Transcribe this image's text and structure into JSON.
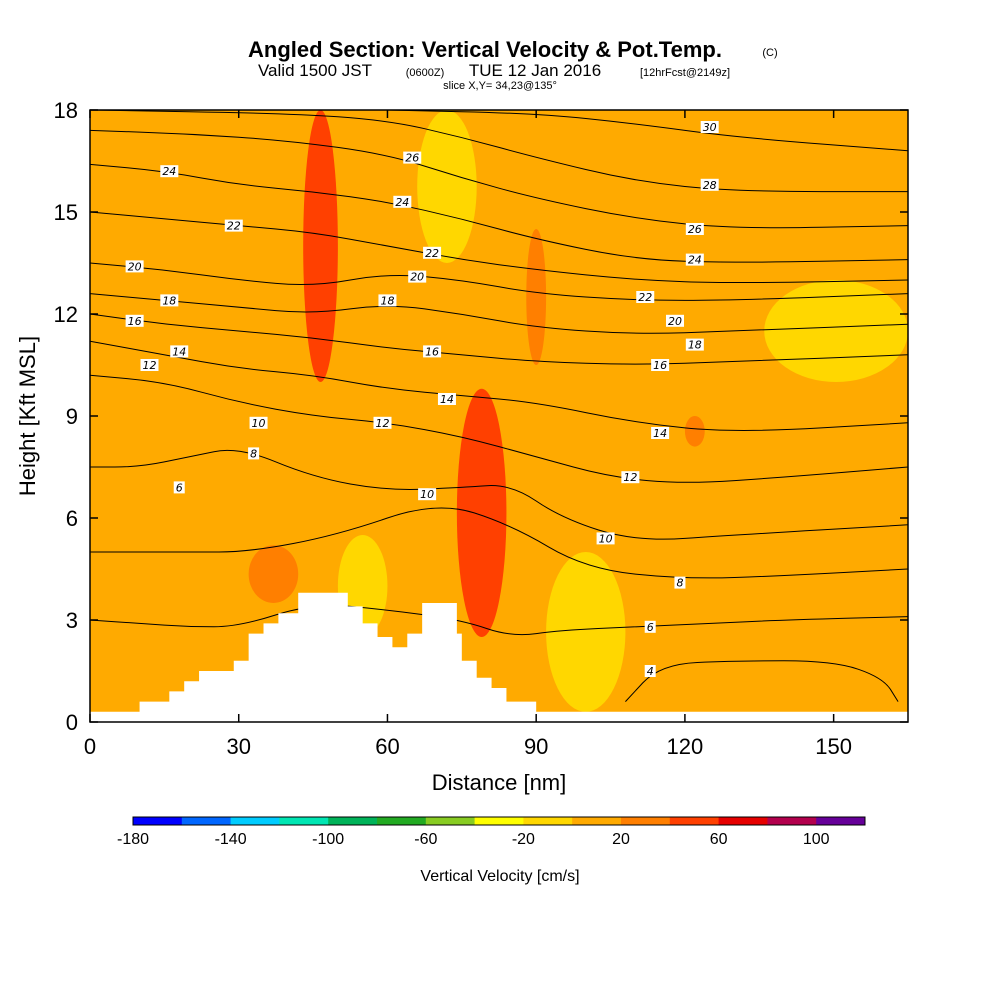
{
  "header": {
    "title": "Angled Section: Vertical Velocity & Pot.Temp.",
    "title_unit": "(C)",
    "valid_prefix": "Valid 1500 JST",
    "valid_utc": "(0600Z)",
    "valid_date": "TUE 12 Jan 2016",
    "forecast": "[12hrFcst@2149z]",
    "slice": "slice X,Y= 34,23@135°"
  },
  "colorbar": {
    "label": "Vertical Velocity [cm/s]",
    "bounds": [
      -180,
      -160,
      -140,
      -120,
      -100,
      -80,
      -60,
      -40,
      -20,
      0,
      20,
      40,
      60,
      80,
      100,
      120
    ],
    "colors": [
      "#0000ff",
      "#0066ff",
      "#00ccff",
      "#00e6b3",
      "#00b359",
      "#22aa22",
      "#88cc22",
      "#ffff00",
      "#ffd700",
      "#ffaa00",
      "#ff7f00",
      "#ff4000",
      "#e60000",
      "#b3004d",
      "#660099"
    ],
    "tick_labels": [
      "-180",
      "-140",
      "-100",
      "-60",
      "-20",
      "20",
      "60",
      "100"
    ]
  },
  "chart_data": {
    "type": "contour",
    "title": "Angled Section: Vertical Velocity & Pot.Temp.",
    "xlabel": "Distance [nm]",
    "ylabel": "Height [Kft MSL]",
    "xlim": [
      0,
      165
    ],
    "ylim": [
      0,
      18
    ],
    "x_ticks": [
      0,
      30,
      60,
      90,
      120,
      150
    ],
    "y_ticks": [
      0,
      3,
      6,
      9,
      12,
      15,
      18
    ],
    "terrain": [
      [
        0,
        0.3
      ],
      [
        10,
        0.3
      ],
      [
        10,
        0.6
      ],
      [
        16,
        0.6
      ],
      [
        16,
        0.9
      ],
      [
        19,
        0.9
      ],
      [
        19,
        1.2
      ],
      [
        22,
        1.2
      ],
      [
        22,
        1.5
      ],
      [
        29,
        1.5
      ],
      [
        29,
        1.8
      ],
      [
        32,
        1.8
      ],
      [
        32,
        2.6
      ],
      [
        35,
        2.6
      ],
      [
        35,
        2.9
      ],
      [
        38,
        2.9
      ],
      [
        38,
        3.2
      ],
      [
        42,
        3.2
      ],
      [
        42,
        3.8
      ],
      [
        52,
        3.8
      ],
      [
        52,
        3.4
      ],
      [
        55,
        3.4
      ],
      [
        55,
        2.9
      ],
      [
        58,
        2.9
      ],
      [
        58,
        2.5
      ],
      [
        61,
        2.5
      ],
      [
        61,
        2.2
      ],
      [
        64,
        2.2
      ],
      [
        64,
        2.6
      ],
      [
        67,
        2.6
      ],
      [
        67,
        3.5
      ],
      [
        74,
        3.5
      ],
      [
        74,
        2.6
      ],
      [
        75,
        2.6
      ],
      [
        75,
        1.8
      ],
      [
        78,
        1.8
      ],
      [
        78,
        1.3
      ],
      [
        81,
        1.3
      ],
      [
        81,
        1.0
      ],
      [
        84,
        1.0
      ],
      [
        84,
        0.6
      ],
      [
        90,
        0.6
      ],
      [
        90,
        0.3
      ],
      [
        165,
        0.3
      ]
    ],
    "potential_temperature_contours": [
      {
        "value": 4,
        "points": [
          [
            108,
            0.6
          ],
          [
            115,
            1.7
          ],
          [
            130,
            1.8
          ],
          [
            150,
            1.8
          ],
          [
            160,
            1.3
          ],
          [
            163,
            0.6
          ]
        ]
      },
      {
        "value": 6,
        "points": [
          [
            0,
            3.0
          ],
          [
            10,
            2.9
          ],
          [
            20,
            2.8
          ],
          [
            30,
            2.8
          ],
          [
            45,
            3.5
          ],
          [
            60,
            3.3
          ],
          [
            75,
            3.0
          ],
          [
            85,
            2.5
          ],
          [
            95,
            2.7
          ],
          [
            110,
            2.8
          ],
          [
            125,
            2.9
          ],
          [
            140,
            3.0
          ],
          [
            165,
            3.1
          ]
        ]
      },
      {
        "value": 8,
        "points": [
          [
            0,
            5.0
          ],
          [
            10,
            5.0
          ],
          [
            20,
            5.0
          ],
          [
            32,
            5.0
          ],
          [
            50,
            5.5
          ],
          [
            70,
            6.5
          ],
          [
            85,
            5.8
          ],
          [
            100,
            4.5
          ],
          [
            120,
            4.2
          ],
          [
            140,
            4.3
          ],
          [
            165,
            4.5
          ]
        ]
      },
      {
        "value": 10,
        "points": [
          [
            0,
            7.5
          ],
          [
            10,
            7.5
          ],
          [
            20,
            7.8
          ],
          [
            30,
            8.1
          ],
          [
            45,
            7.2
          ],
          [
            60,
            6.8
          ],
          [
            75,
            6.9
          ],
          [
            85,
            7.0
          ],
          [
            95,
            6.0
          ],
          [
            110,
            5.3
          ],
          [
            130,
            5.5
          ],
          [
            165,
            5.8
          ]
        ]
      },
      {
        "value": 12,
        "points": [
          [
            0,
            10.2
          ],
          [
            15,
            10.0
          ],
          [
            30,
            9.4
          ],
          [
            45,
            9.0
          ],
          [
            60,
            8.8
          ],
          [
            75,
            8.4
          ],
          [
            90,
            7.8
          ],
          [
            105,
            7.2
          ],
          [
            120,
            7.0
          ],
          [
            140,
            7.2
          ],
          [
            165,
            7.5
          ]
        ]
      },
      {
        "value": 14,
        "points": [
          [
            0,
            11.2
          ],
          [
            15,
            10.8
          ],
          [
            30,
            10.4
          ],
          [
            45,
            10.2
          ],
          [
            60,
            9.8
          ],
          [
            75,
            9.6
          ],
          [
            90,
            9.4
          ],
          [
            110,
            8.8
          ],
          [
            130,
            8.5
          ],
          [
            165,
            8.8
          ]
        ]
      },
      {
        "value": 16,
        "points": [
          [
            0,
            12.0
          ],
          [
            15,
            11.7
          ],
          [
            30,
            11.5
          ],
          [
            45,
            11.3
          ],
          [
            60,
            11.0
          ],
          [
            75,
            10.8
          ],
          [
            90,
            10.6
          ],
          [
            110,
            10.5
          ],
          [
            130,
            10.6
          ],
          [
            165,
            10.8
          ]
        ]
      },
      {
        "value": 18,
        "points": [
          [
            0,
            12.6
          ],
          [
            15,
            12.4
          ],
          [
            30,
            12.2
          ],
          [
            45,
            12.0
          ],
          [
            60,
            12.3
          ],
          [
            75,
            12.0
          ],
          [
            90,
            11.6
          ],
          [
            110,
            11.4
          ],
          [
            130,
            11.5
          ],
          [
            165,
            11.7
          ]
        ]
      },
      {
        "value": 20,
        "points": [
          [
            0,
            13.5
          ],
          [
            15,
            13.3
          ],
          [
            30,
            13.0
          ],
          [
            45,
            12.8
          ],
          [
            60,
            13.2
          ],
          [
            75,
            13.0
          ],
          [
            90,
            12.6
          ],
          [
            110,
            12.4
          ],
          [
            130,
            12.4
          ],
          [
            165,
            12.6
          ]
        ]
      },
      {
        "value": 22,
        "points": [
          [
            0,
            15.0
          ],
          [
            15,
            14.8
          ],
          [
            30,
            14.6
          ],
          [
            45,
            14.4
          ],
          [
            60,
            14.0
          ],
          [
            75,
            13.6
          ],
          [
            90,
            13.3
          ],
          [
            110,
            13.0
          ],
          [
            130,
            12.9
          ],
          [
            165,
            13.0
          ]
        ]
      },
      {
        "value": 24,
        "points": [
          [
            0,
            16.4
          ],
          [
            15,
            16.2
          ],
          [
            30,
            15.8
          ],
          [
            45,
            15.6
          ],
          [
            60,
            15.3
          ],
          [
            75,
            14.8
          ],
          [
            90,
            14.2
          ],
          [
            110,
            13.6
          ],
          [
            130,
            13.5
          ],
          [
            165,
            13.6
          ]
        ]
      },
      {
        "value": 26,
        "points": [
          [
            0,
            17.4
          ],
          [
            20,
            17.3
          ],
          [
            40,
            17.1
          ],
          [
            60,
            16.7
          ],
          [
            75,
            16.0
          ],
          [
            90,
            15.4
          ],
          [
            110,
            14.8
          ],
          [
            130,
            14.5
          ],
          [
            165,
            14.6
          ]
        ]
      },
      {
        "value": 28,
        "points": [
          [
            0,
            18.0
          ],
          [
            40,
            17.9
          ],
          [
            60,
            17.7
          ],
          [
            75,
            17.2
          ],
          [
            90,
            16.6
          ],
          [
            110,
            15.9
          ],
          [
            130,
            15.6
          ],
          [
            165,
            15.6
          ]
        ]
      },
      {
        "value": 30,
        "points": [
          [
            60,
            18.0
          ],
          [
            90,
            17.9
          ],
          [
            110,
            17.6
          ],
          [
            130,
            17.2
          ],
          [
            165,
            16.8
          ]
        ]
      }
    ],
    "contour_labels": [
      {
        "text": "24",
        "x": 16,
        "y": 16.2
      },
      {
        "text": "22",
        "x": 29,
        "y": 14.6
      },
      {
        "text": "20",
        "x": 9,
        "y": 13.4
      },
      {
        "text": "18",
        "x": 16,
        "y": 12.4
      },
      {
        "text": "16",
        "x": 9,
        "y": 11.8
      },
      {
        "text": "14",
        "x": 18,
        "y": 10.9
      },
      {
        "text": "12",
        "x": 12,
        "y": 10.5
      },
      {
        "text": "10",
        "x": 34,
        "y": 8.8
      },
      {
        "text": "8",
        "x": 33,
        "y": 7.9
      },
      {
        "text": "6",
        "x": 18,
        "y": 6.9
      },
      {
        "text": "26",
        "x": 65,
        "y": 16.6
      },
      {
        "text": "24",
        "x": 63,
        "y": 15.3
      },
      {
        "text": "22",
        "x": 69,
        "y": 13.8
      },
      {
        "text": "20",
        "x": 66,
        "y": 13.1
      },
      {
        "text": "18",
        "x": 60,
        "y": 12.4
      },
      {
        "text": "16",
        "x": 69,
        "y": 10.9
      },
      {
        "text": "14",
        "x": 72,
        "y": 9.5
      },
      {
        "text": "12",
        "x": 59,
        "y": 8.8
      },
      {
        "text": "10",
        "x": 68,
        "y": 6.7
      },
      {
        "text": "30",
        "x": 125,
        "y": 17.5
      },
      {
        "text": "28",
        "x": 125,
        "y": 15.8
      },
      {
        "text": "26",
        "x": 122,
        "y": 14.5
      },
      {
        "text": "24",
        "x": 122,
        "y": 13.6
      },
      {
        "text": "22",
        "x": 112,
        "y": 12.5
      },
      {
        "text": "20",
        "x": 118,
        "y": 11.8
      },
      {
        "text": "18",
        "x": 122,
        "y": 11.1
      },
      {
        "text": "16",
        "x": 115,
        "y": 10.5
      },
      {
        "text": "14",
        "x": 115,
        "y": 8.5
      },
      {
        "text": "12",
        "x": 109,
        "y": 7.2
      },
      {
        "text": "10",
        "x": 104,
        "y": 5.4
      },
      {
        "text": "8",
        "x": 119,
        "y": 4.1
      },
      {
        "text": "6",
        "x": 113,
        "y": 2.8
      },
      {
        "text": "4",
        "x": 113,
        "y": 1.5
      }
    ],
    "velocity_bands": [
      {
        "x_from": 43,
        "x_to": 50,
        "y_from": 10,
        "y_to": 18,
        "level": "40-60"
      },
      {
        "x_from": 74,
        "x_to": 84,
        "y_from": 2.5,
        "y_to": 9.8,
        "level": "40-60"
      },
      {
        "x_from": 32,
        "x_to": 42,
        "y_from": 3.5,
        "y_to": 5.2,
        "level": "20-40"
      },
      {
        "x_from": 88,
        "x_to": 92,
        "y_from": 10.5,
        "y_to": 14.5,
        "level": "20-40"
      },
      {
        "x_from": 120,
        "x_to": 124,
        "y_from": 8.1,
        "y_to": 9.0,
        "level": "20-40"
      },
      {
        "x_from": 66,
        "x_to": 78,
        "y_from": 13.5,
        "y_to": 18,
        "level": "-20-0"
      },
      {
        "x_from": 50,
        "x_to": 60,
        "y_from": 2.5,
        "y_to": 5.5,
        "level": "-20-0"
      },
      {
        "x_from": 92,
        "x_to": 108,
        "y_from": 0.3,
        "y_to": 5.0,
        "level": "-20-0"
      },
      {
        "x_from": 136,
        "x_to": 165,
        "y_from": 10.0,
        "y_to": 13.0,
        "level": "-20-0"
      }
    ]
  }
}
